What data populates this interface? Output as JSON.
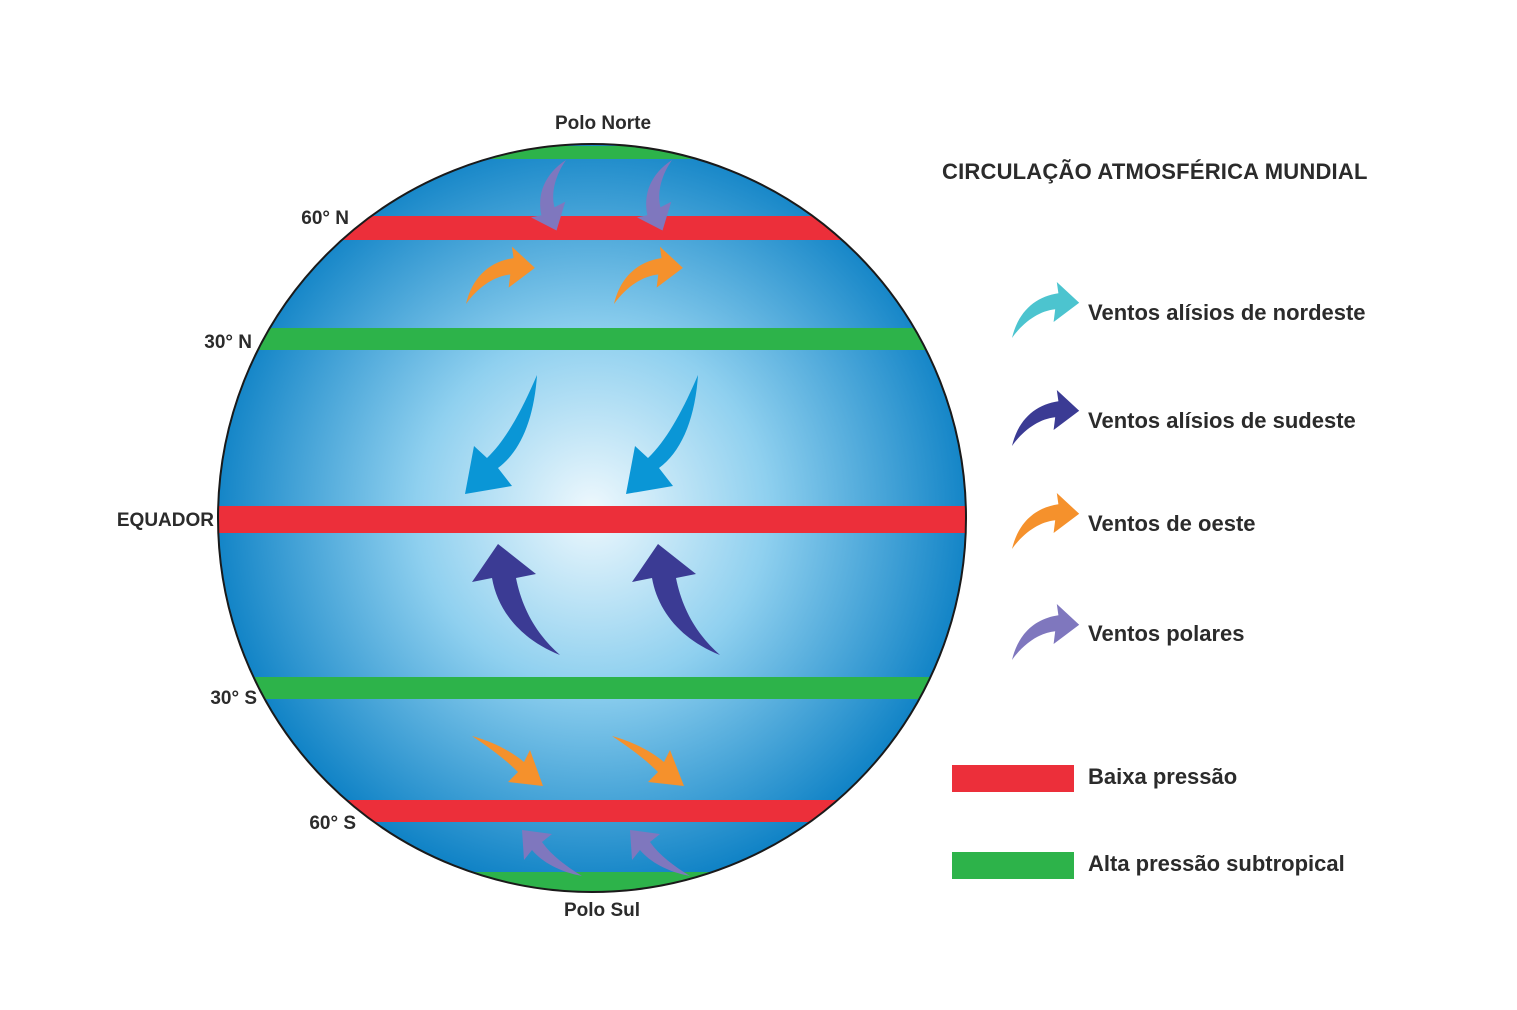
{
  "title": "CIRCULAÇÃO ATMOSFÉRICA MUNDIAL",
  "poles": {
    "north": "Polo Norte",
    "south": "Polo Sul"
  },
  "latitudes": {
    "n60": "60° N",
    "n30": "30° N",
    "equator": "EQUADOR",
    "s30": "30° S",
    "s60": "60° S"
  },
  "colors": {
    "globe_edge": "#0a7fc4",
    "globe_center": "#eef8fd",
    "globe_outline": "#1a1a1a",
    "low_pressure": "#ec2f3a",
    "high_pressure": "#2db34a",
    "northeast_trades": "#4cc4cf",
    "southeast_trades": "#3b3b94",
    "westerlies": "#f5912c",
    "polar_winds": "#7f77be",
    "equatorial_arrows": "#0a96d6"
  },
  "legend": {
    "winds": [
      {
        "label": "Ventos alísios de nordeste",
        "color": "#4cc4cf"
      },
      {
        "label": "Ventos alísios de sudeste",
        "color": "#3b3b94"
      },
      {
        "label": "Ventos de oeste",
        "color": "#f5912c"
      },
      {
        "label": "Ventos polares",
        "color": "#7f77be"
      }
    ],
    "pressure": [
      {
        "label": "Baixa pressão",
        "color": "#ec2f3a"
      },
      {
        "label": "Alta pressão subtropical",
        "color": "#2db34a"
      }
    ]
  }
}
